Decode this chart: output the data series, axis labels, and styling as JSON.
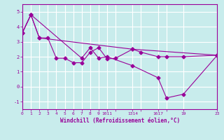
{
  "xlabel": "Windchill (Refroidissement éolien,°C)",
  "background_color": "#c8ecec",
  "grid_color": "#ffffff",
  "line_color": "#990099",
  "xlim": [
    0,
    23
  ],
  "ylim": [
    -1.5,
    5.5
  ],
  "yticks": [
    -1,
    0,
    1,
    2,
    3,
    4,
    5
  ],
  "line1_x": [
    0,
    1,
    2,
    3,
    4,
    5,
    6,
    7,
    8,
    9,
    10,
    11,
    13,
    14,
    16,
    17,
    19,
    23
  ],
  "line1_y": [
    3.6,
    4.8,
    3.25,
    3.25,
    1.9,
    1.9,
    1.6,
    1.6,
    2.3,
    2.6,
    1.85,
    1.9,
    2.5,
    2.3,
    2.0,
    2.0,
    2.0,
    2.1
  ],
  "line2_x": [
    0,
    1,
    2,
    13,
    23
  ],
  "line2_y": [
    3.6,
    4.8,
    3.25,
    2.5,
    2.1
  ],
  "line3_x": [
    0,
    1,
    7,
    8,
    9,
    10,
    13,
    16,
    17,
    19,
    23
  ],
  "line3_y": [
    3.6,
    4.8,
    1.9,
    2.6,
    1.9,
    2.0,
    1.4,
    0.6,
    -0.75,
    -0.5,
    2.1
  ],
  "xtick_positions": [
    0,
    1,
    2,
    3,
    4,
    5,
    6,
    7,
    8,
    9,
    10,
    11,
    13,
    14,
    16,
    17,
    19,
    23
  ],
  "xtick_labels": [
    "0",
    "1",
    "2",
    "3",
    "4",
    "5",
    "6",
    "7",
    "8",
    "9",
    "1011",
    "",
    "1314",
    "",
    "1617",
    "",
    "19",
    "23"
  ],
  "marker_size": 2.5
}
